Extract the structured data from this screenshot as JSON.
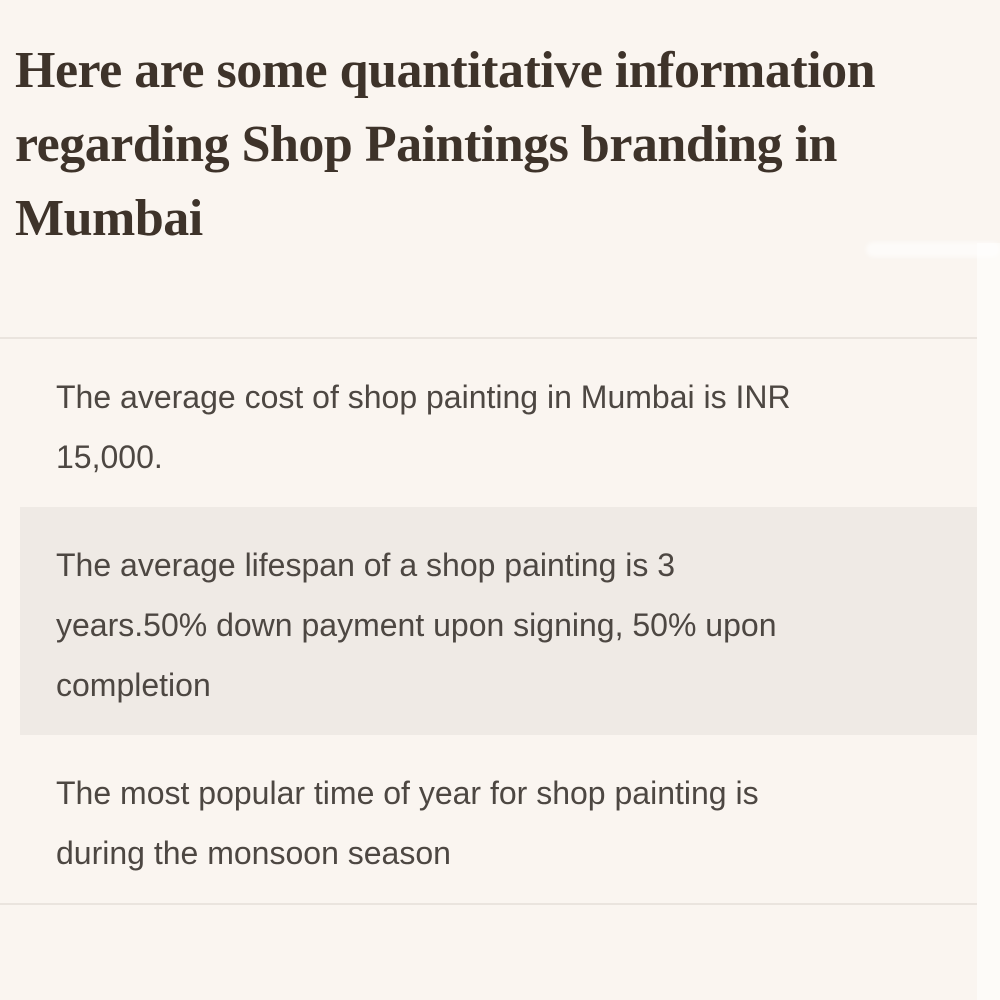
{
  "colors": {
    "page_background": "#faf5f0",
    "highlight_row_background": "#efeae5",
    "divider": "#eae4de",
    "heading_text": "#3e332a",
    "body_text": "#4d4742"
  },
  "heading": {
    "text": "Here are some quantitative information regarding Shop Paintings branding in Mumbai",
    "lines": [
      "Here are some quantitative information",
      "regarding Shop Paintings branding in",
      "Mumbai"
    ]
  },
  "facts": [
    {
      "text": "The average cost of shop painting in Mumbai is INR 15,000.",
      "lines": [
        "The average cost of shop painting in Mumbai is INR",
        "15,000."
      ]
    },
    {
      "text": "The average lifespan of a shop painting is 3 years.50% down payment upon signing, 50% upon completion",
      "lines": [
        "The average lifespan of a shop painting is 3",
        "years.50% down payment upon signing, 50% upon",
        "completion"
      ]
    },
    {
      "text": "The most popular time of year for shop painting is during the monsoon season",
      "lines": [
        "The most popular time of year for shop painting is",
        "during the monsoon season"
      ]
    }
  ]
}
